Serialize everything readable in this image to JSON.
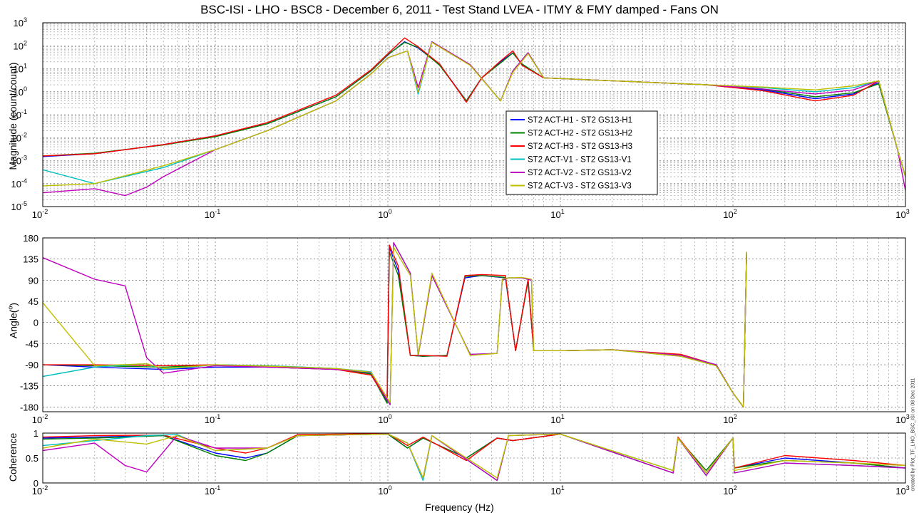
{
  "title": "BSC-ISI - LHO - BSC8 - December 6, 2011 - Test Stand LVEA - ITMY & FMY damped - Fans ON",
  "xlabel": "Frequency (Hz)",
  "credit": "created by Plot_TF_LHO_BSC_ISI on 08 Dec 2011",
  "colors": {
    "ST2 ACT-H1 - ST2 GS13-H1": "#0000ff",
    "ST2 ACT-H2 - ST2 GS13-H2": "#008000",
    "ST2 ACT-H3 - ST2 GS13-H3": "#ff0000",
    "ST2 ACT-V1 - ST2 GS13-V1": "#00bfbf",
    "ST2 ACT-V2 - ST2 GS13-V2": "#bf00bf",
    "ST2 ACT-V3 - ST2 GS13-V3": "#bfbf00"
  },
  "chart_data": [
    {
      "type": "line",
      "title": "",
      "xlabel": "",
      "ylabel": "Magnitude (count/count)",
      "xscale": "log",
      "yscale": "log",
      "xlim": [
        0.01,
        1000
      ],
      "ylim": [
        1e-05,
        1000
      ],
      "xticks": [
        "10-2",
        "10-1",
        "100",
        "101",
        "102",
        "103"
      ],
      "yticks": [
        "10-5",
        "10-4",
        "10-3",
        "10-2",
        "10-1",
        "100",
        "101",
        "102",
        "103"
      ],
      "grid": true,
      "legend_position": "center-right",
      "series": [
        {
          "name": "ST2 ACT-H1 - ST2 GS13-H1",
          "x": [
            0.01,
            0.02,
            0.05,
            0.1,
            0.2,
            0.5,
            0.8,
            1.0,
            1.25,
            1.5,
            2.0,
            2.85,
            3.5,
            4.5,
            5.3,
            6.0,
            8.0,
            20,
            70,
            150,
            300,
            500,
            700,
            900,
            1000
          ],
          "y": [
            0.0015,
            0.002,
            0.005,
            0.012,
            0.04,
            0.6,
            8,
            40,
            150,
            80,
            15,
            0.4,
            4,
            20,
            50,
            15,
            4,
            3,
            2,
            1.2,
            0.5,
            0.8,
            2.5,
            0.003,
            0.0002
          ]
        },
        {
          "name": "ST2 ACT-H2 - ST2 GS13-H2",
          "x": [
            0.01,
            0.02,
            0.05,
            0.1,
            0.2,
            0.5,
            0.8,
            1.0,
            1.25,
            1.5,
            2.0,
            2.85,
            3.5,
            4.5,
            5.3,
            6.0,
            8.0,
            20,
            70,
            150,
            300,
            500,
            700,
            900,
            1000
          ],
          "y": [
            0.0016,
            0.0021,
            0.0048,
            0.011,
            0.04,
            0.6,
            8,
            42,
            140,
            85,
            14,
            0.4,
            4,
            18,
            48,
            16,
            4,
            3,
            2,
            1.3,
            0.6,
            0.9,
            2.2,
            0.003,
            0.0002
          ]
        },
        {
          "name": "ST2 ACT-H3 - ST2 GS13-H3",
          "x": [
            0.01,
            0.02,
            0.05,
            0.1,
            0.2,
            0.5,
            0.8,
            1.0,
            1.25,
            1.5,
            2.0,
            2.85,
            3.5,
            4.5,
            5.3,
            6.0,
            8.0,
            20,
            70,
            150,
            300,
            500,
            700,
            900,
            1000
          ],
          "y": [
            0.0016,
            0.002,
            0.005,
            0.012,
            0.045,
            0.7,
            9,
            45,
            220,
            90,
            16,
            0.35,
            4,
            22,
            60,
            14,
            4,
            3,
            2,
            1.1,
            0.4,
            0.7,
            3,
            0.003,
            0.0002
          ]
        },
        {
          "name": "ST2 ACT-V1 - ST2 GS13-V1",
          "x": [
            0.01,
            0.02,
            0.05,
            0.1,
            0.2,
            0.5,
            0.8,
            1.0,
            1.3,
            1.5,
            1.8,
            3.0,
            4.5,
            5.3,
            6.5,
            8.0,
            20,
            70,
            150,
            300,
            500,
            700,
            900,
            1000
          ],
          "y": [
            0.0004,
            0.0001,
            0.0005,
            0.003,
            0.02,
            0.4,
            6,
            30,
            60,
            0.8,
            150,
            15,
            0.4,
            8,
            50,
            4,
            3,
            2,
            1.5,
            1,
            1.5,
            3,
            0.003,
            0.0002
          ]
        },
        {
          "name": "ST2 ACT-V2 - ST2 GS13-V2",
          "x": [
            0.01,
            0.02,
            0.03,
            0.04,
            0.05,
            0.1,
            0.2,
            0.5,
            0.8,
            1.0,
            1.3,
            1.5,
            1.8,
            3.0,
            4.5,
            5.3,
            6.5,
            8.0,
            20,
            70,
            150,
            300,
            500,
            700,
            900,
            1000
          ],
          "y": [
            4e-05,
            6e-05,
            3e-05,
            7e-05,
            0.0002,
            0.003,
            0.02,
            0.4,
            6,
            30,
            60,
            1.5,
            150,
            15,
            0.4,
            8,
            50,
            4,
            3,
            2,
            1.3,
            0.8,
            1.2,
            3,
            0.003,
            5e-05
          ]
        },
        {
          "name": "ST2 ACT-V3 - ST2 GS13-V3",
          "x": [
            0.01,
            0.02,
            0.05,
            0.1,
            0.2,
            0.5,
            0.8,
            1.0,
            1.3,
            1.5,
            1.8,
            3.0,
            4.5,
            5.3,
            6.5,
            8.0,
            20,
            70,
            150,
            300,
            500,
            700,
            900,
            1000
          ],
          "y": [
            8e-05,
            0.0001,
            0.0006,
            0.003,
            0.02,
            0.4,
            6,
            30,
            60,
            1.0,
            140,
            14,
            0.4,
            7,
            45,
            4,
            3,
            2,
            1.6,
            1.2,
            1.8,
            3,
            0.003,
            0.0002
          ]
        }
      ]
    },
    {
      "type": "line",
      "title": "",
      "xlabel": "",
      "ylabel": "Angle(o)",
      "xscale": "log",
      "xlim": [
        0.01,
        1000
      ],
      "ylim": [
        -190,
        180
      ],
      "xticks": [
        "10-2",
        "10-1",
        "100",
        "101",
        "102",
        "103"
      ],
      "yticks": [
        "-180",
        "-135",
        "-90",
        "-45",
        "0",
        "45",
        "90",
        "135",
        "180"
      ],
      "grid": true,
      "series": [
        {
          "name": "ST2 ACT-H1 - ST2 GS13-H1",
          "x": [
            0.01,
            0.02,
            0.05,
            0.1,
            0.2,
            0.5,
            0.8,
            0.99,
            1.02,
            1.15,
            1.35,
            1.6,
            2.2,
            2.8,
            3.5,
            4.8,
            5.5,
            6.5,
            7.0,
            10,
            20,
            50,
            80,
            100,
            115,
            120
          ],
          "y": [
            -90,
            -95,
            -100,
            -95,
            -95,
            -100,
            -108,
            -170,
            160,
            110,
            -70,
            -72,
            -70,
            95,
            100,
            95,
            -60,
            90,
            -60,
            -60,
            -58,
            -70,
            -90,
            -150,
            -180,
            150
          ]
        },
        {
          "name": "ST2 ACT-H2 - ST2 GS13-H2",
          "x": [
            0.01,
            0.02,
            0.05,
            0.1,
            0.2,
            0.5,
            0.8,
            0.99,
            1.02,
            1.15,
            1.35,
            1.6,
            2.2,
            2.8,
            3.5,
            4.8,
            5.5,
            6.5,
            7.0,
            10,
            20,
            50,
            80,
            100,
            115,
            120
          ],
          "y": [
            -90,
            -92,
            -95,
            -90,
            -92,
            -98,
            -110,
            -172,
            150,
            100,
            -70,
            -72,
            -70,
            98,
            100,
            96,
            -60,
            88,
            -60,
            -60,
            -58,
            -72,
            -92,
            -150,
            -180,
            150
          ]
        },
        {
          "name": "ST2 ACT-H3 - ST2 GS13-H3",
          "x": [
            0.01,
            0.02,
            0.05,
            0.1,
            0.2,
            0.5,
            0.8,
            0.99,
            1.02,
            1.15,
            1.35,
            1.6,
            2.2,
            2.8,
            3.5,
            4.8,
            5.5,
            6.5,
            7.0,
            10,
            20,
            50,
            80,
            100,
            115,
            120
          ],
          "y": [
            -90,
            -90,
            -92,
            -90,
            -95,
            -100,
            -112,
            -165,
            165,
            120,
            -70,
            -70,
            -72,
            100,
            102,
            100,
            -60,
            92,
            -60,
            -60,
            -58,
            -68,
            -90,
            -150,
            -180,
            150
          ]
        },
        {
          "name": "ST2 ACT-V1 - ST2 GS13-V1",
          "x": [
            0.01,
            0.02,
            0.04,
            0.05,
            0.1,
            0.2,
            0.5,
            0.8,
            1.03,
            1.08,
            1.35,
            1.5,
            1.8,
            3.0,
            4.3,
            4.6,
            5.0,
            6.0,
            6.8,
            7.0,
            10,
            20,
            50,
            80,
            100,
            115,
            120
          ],
          "y": [
            -115,
            -95,
            -88,
            -100,
            -90,
            -92,
            -98,
            -105,
            -175,
            170,
            105,
            -70,
            100,
            -68,
            -66,
            90,
            95,
            95,
            90,
            -60,
            -60,
            -58,
            -70,
            -90,
            -150,
            -180,
            150
          ]
        },
        {
          "name": "ST2 ACT-V2 - ST2 GS13-V2",
          "x": [
            0.01,
            0.02,
            0.03,
            0.04,
            0.05,
            0.1,
            0.2,
            0.5,
            0.8,
            1.03,
            1.08,
            1.35,
            1.5,
            1.8,
            3.0,
            4.3,
            4.6,
            5.0,
            6.0,
            6.8,
            7.0,
            10,
            20,
            50,
            80,
            100,
            115,
            120
          ],
          "y": [
            138,
            92,
            78,
            -75,
            -108,
            -92,
            -95,
            -100,
            -106,
            -175,
            170,
            105,
            -70,
            100,
            -68,
            -66,
            90,
            95,
            95,
            90,
            -60,
            -60,
            -58,
            -70,
            -90,
            -150,
            -180,
            150
          ]
        },
        {
          "name": "ST2 ACT-V3 - ST2 GS13-V3",
          "x": [
            0.01,
            0.02,
            0.04,
            0.05,
            0.1,
            0.2,
            0.5,
            0.8,
            1.03,
            1.08,
            1.35,
            1.5,
            1.8,
            3.0,
            4.3,
            4.6,
            5.0,
            6.0,
            6.8,
            7.0,
            10,
            20,
            50,
            80,
            100,
            115,
            120
          ],
          "y": [
            42,
            -92,
            -88,
            -98,
            -90,
            -93,
            -98,
            -106,
            -170,
            160,
            100,
            -68,
            105,
            -70,
            -66,
            92,
            95,
            96,
            92,
            -60,
            -60,
            -58,
            -72,
            -92,
            -150,
            -180,
            150
          ]
        }
      ]
    },
    {
      "type": "line",
      "title": "",
      "xlabel": "Frequency (Hz)",
      "ylabel": "Coherence",
      "xscale": "log",
      "xlim": [
        0.01,
        1000
      ],
      "ylim": [
        0,
        1
      ],
      "xticks": [
        "10-2",
        "10-1",
        "100",
        "101",
        "102",
        "103"
      ],
      "yticks": [
        "0",
        "0.5",
        "1"
      ],
      "grid": true,
      "series": [
        {
          "name": "ST2 ACT-H1 - ST2 GS13-H1",
          "x": [
            0.01,
            0.02,
            0.05,
            0.1,
            0.15,
            0.2,
            0.3,
            1.0,
            1.3,
            1.6,
            2.85,
            4.3,
            5.3,
            10,
            45,
            48,
            70,
            100,
            102,
            200,
            500,
            1000
          ],
          "y": [
            0.9,
            0.92,
            0.95,
            0.6,
            0.5,
            0.6,
            0.95,
            0.98,
            0.7,
            0.9,
            0.5,
            0.9,
            0.85,
            0.98,
            0.2,
            0.9,
            0.2,
            0.9,
            0.3,
            0.5,
            0.4,
            0.3
          ]
        },
        {
          "name": "ST2 ACT-H2 - ST2 GS13-H2",
          "x": [
            0.01,
            0.02,
            0.05,
            0.1,
            0.15,
            0.2,
            0.3,
            1.0,
            1.3,
            1.6,
            2.85,
            4.3,
            5.3,
            10,
            45,
            48,
            70,
            100,
            102,
            200,
            500,
            1000
          ],
          "y": [
            0.88,
            0.9,
            0.95,
            0.55,
            0.45,
            0.6,
            0.95,
            0.98,
            0.7,
            0.9,
            0.5,
            0.9,
            0.85,
            0.98,
            0.25,
            0.9,
            0.25,
            0.9,
            0.3,
            0.45,
            0.4,
            0.3
          ]
        },
        {
          "name": "ST2 ACT-H3 - ST2 GS13-H3",
          "x": [
            0.01,
            0.02,
            0.05,
            0.1,
            0.15,
            0.2,
            0.3,
            1.0,
            1.3,
            1.6,
            2.85,
            4.3,
            5.3,
            10,
            45,
            48,
            70,
            100,
            102,
            200,
            500,
            1000
          ],
          "y": [
            0.92,
            0.95,
            0.96,
            0.7,
            0.6,
            0.7,
            0.97,
            0.99,
            0.75,
            0.92,
            0.45,
            0.9,
            0.85,
            0.98,
            0.2,
            0.92,
            0.2,
            0.9,
            0.3,
            0.55,
            0.45,
            0.35
          ]
        },
        {
          "name": "ST2 ACT-V1 - ST2 GS13-V1",
          "x": [
            0.01,
            0.02,
            0.04,
            0.06,
            0.1,
            0.2,
            0.3,
            1.0,
            1.3,
            1.6,
            1.8,
            4.3,
            5.0,
            10,
            45,
            48,
            70,
            100,
            102,
            200,
            500,
            1000
          ],
          "y": [
            0.75,
            0.85,
            0.95,
            0.97,
            0.65,
            0.7,
            0.95,
            0.98,
            0.8,
            0.05,
            0.95,
            0.05,
            0.95,
            0.98,
            0.2,
            0.9,
            0.15,
            0.9,
            0.2,
            0.4,
            0.35,
            0.3
          ]
        },
        {
          "name": "ST2 ACT-V2 - ST2 GS13-V2",
          "x": [
            0.01,
            0.02,
            0.03,
            0.04,
            0.06,
            0.1,
            0.2,
            0.3,
            1.0,
            1.3,
            1.6,
            1.8,
            4.3,
            5.0,
            10,
            45,
            48,
            70,
            100,
            102,
            200,
            500,
            1000
          ],
          "y": [
            0.65,
            0.8,
            0.35,
            0.22,
            0.95,
            0.7,
            0.7,
            0.95,
            0.98,
            0.8,
            0.1,
            0.95,
            0.05,
            0.95,
            0.98,
            0.2,
            0.9,
            0.15,
            0.9,
            0.2,
            0.4,
            0.35,
            0.3
          ]
        },
        {
          "name": "ST2 ACT-V3 - ST2 GS13-V3",
          "x": [
            0.01,
            0.02,
            0.04,
            0.06,
            0.1,
            0.2,
            0.3,
            1.0,
            1.3,
            1.6,
            1.8,
            4.3,
            5.0,
            10,
            45,
            48,
            70,
            100,
            102,
            200,
            500,
            1000
          ],
          "y": [
            0.7,
            0.88,
            0.78,
            0.95,
            0.65,
            0.7,
            0.95,
            0.98,
            0.8,
            0.1,
            0.95,
            0.1,
            0.95,
            0.98,
            0.25,
            0.9,
            0.2,
            0.9,
            0.25,
            0.45,
            0.4,
            0.35
          ]
        }
      ]
    }
  ]
}
